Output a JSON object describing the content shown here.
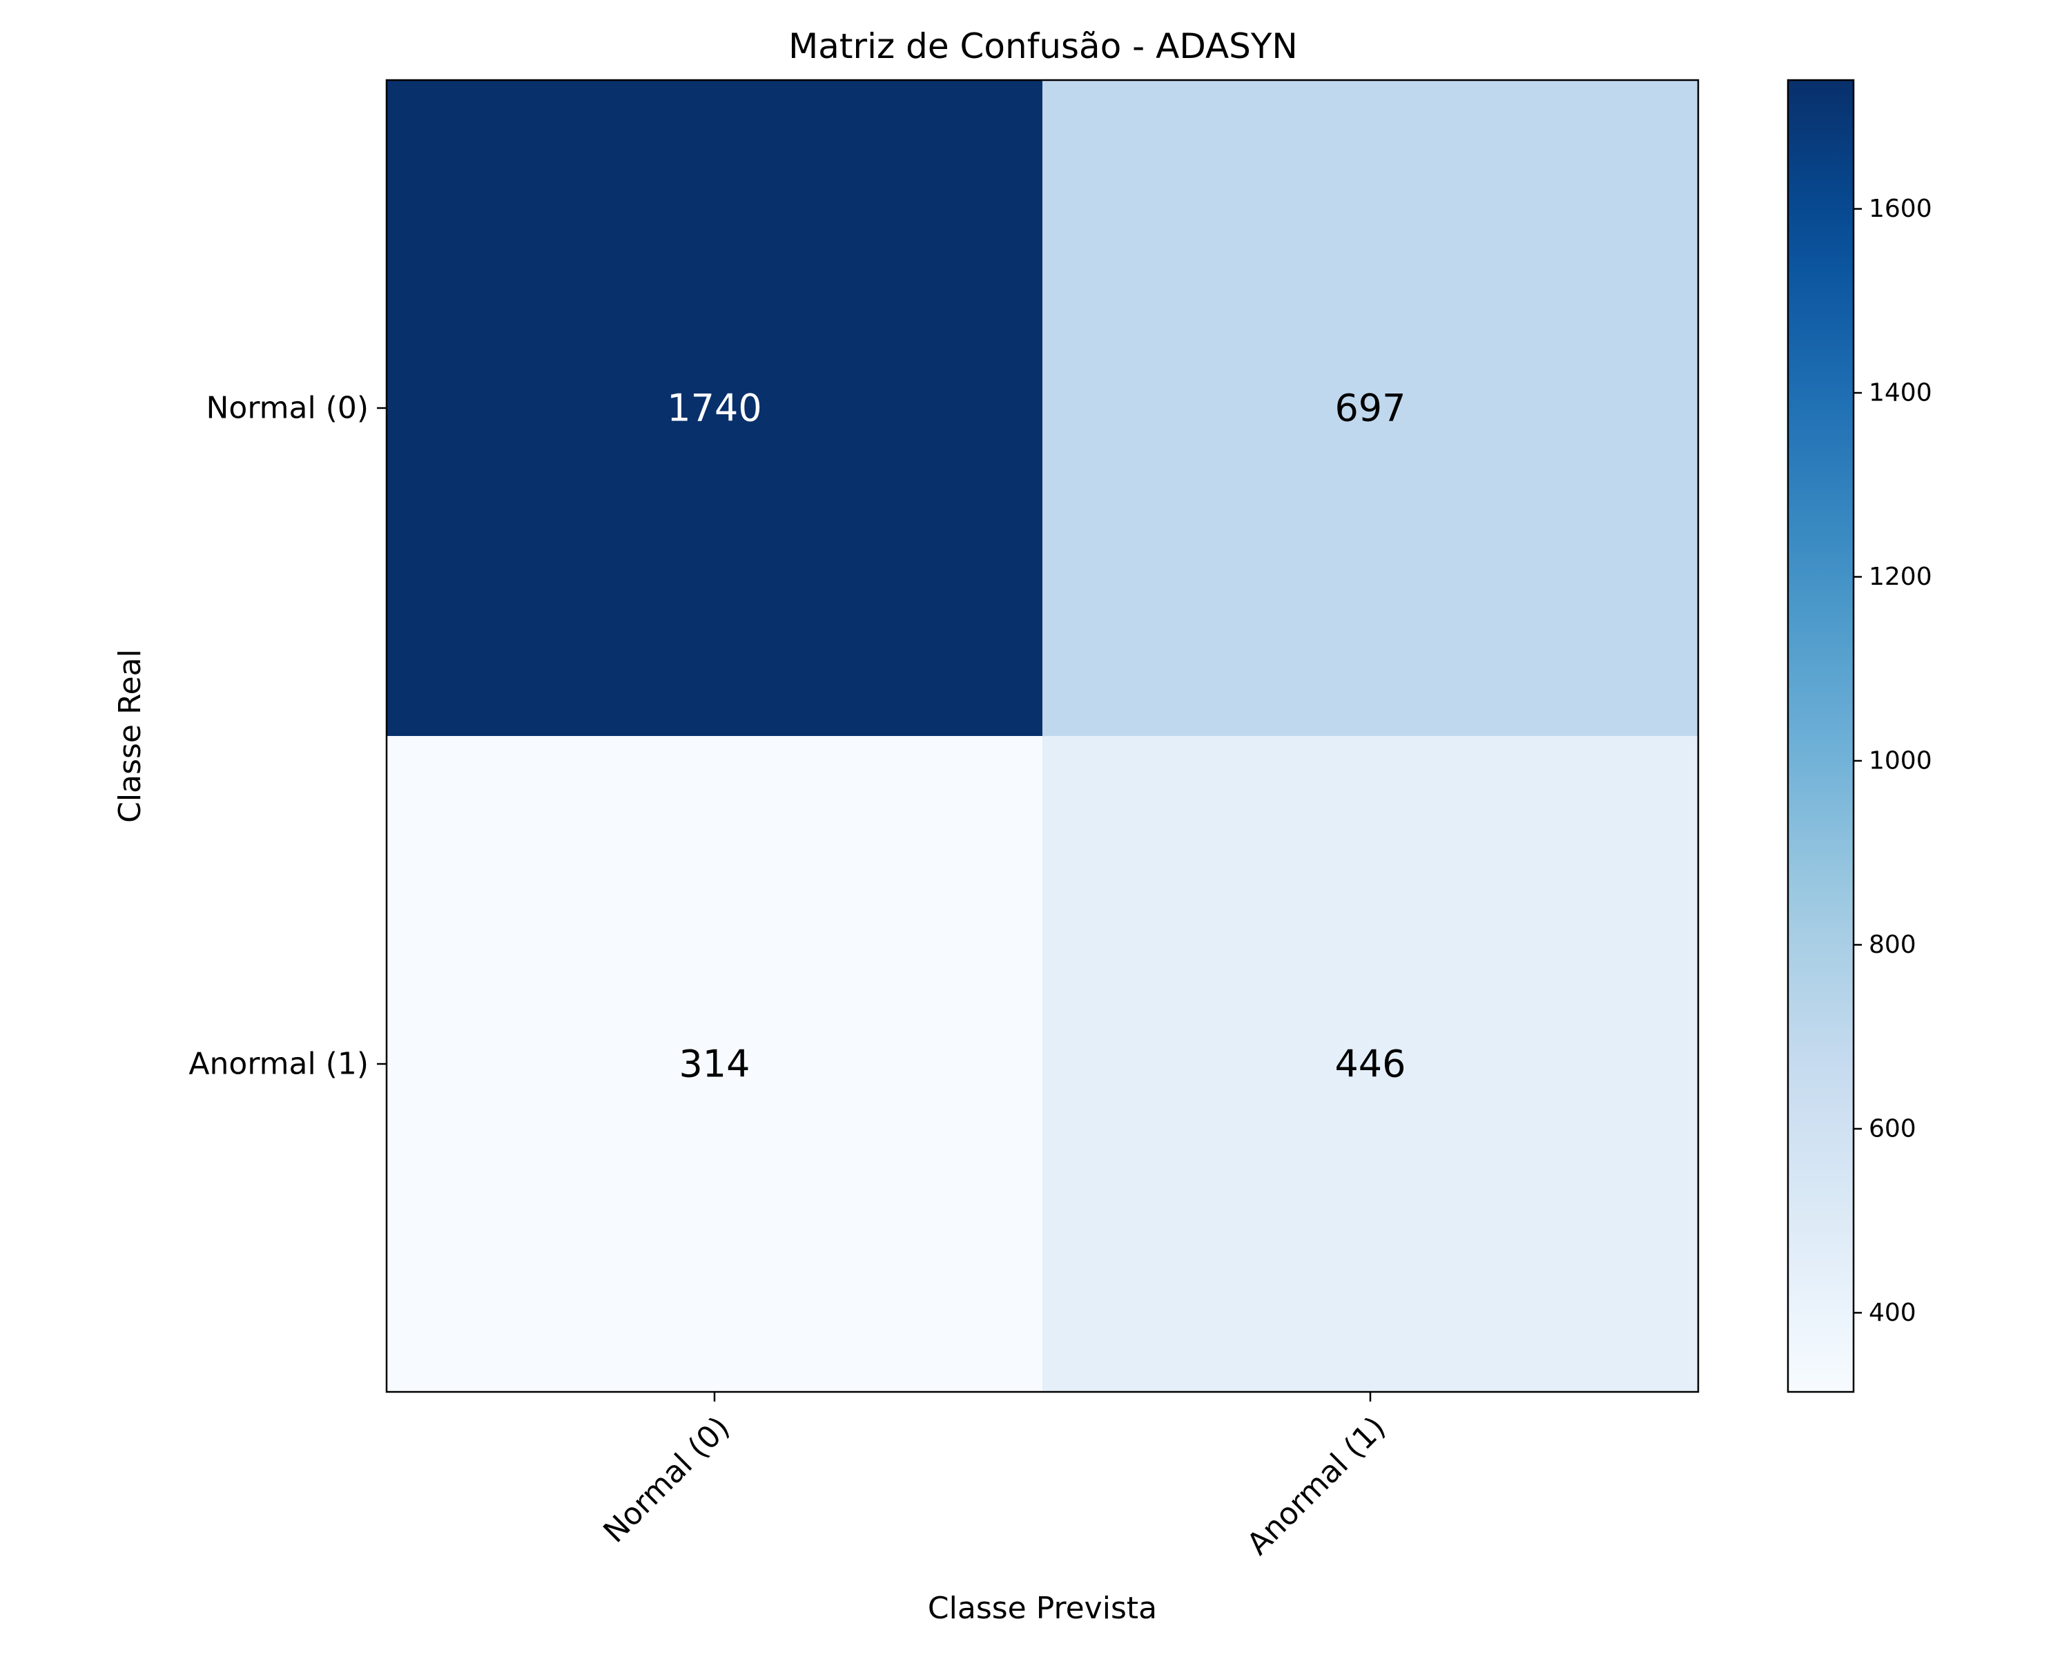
{
  "chart_data": {
    "type": "heatmap",
    "title": "Matriz de Confusão - ADASYN",
    "xlabel": "Classe Prevista",
    "ylabel": "Classe Real",
    "x_categories": [
      "Normal (0)",
      "Anormal (1)"
    ],
    "y_categories": [
      "Normal (0)",
      "Anormal (1)"
    ],
    "values": [
      [
        1740,
        697
      ],
      [
        314,
        446
      ]
    ],
    "colormap": "Blues",
    "color_range": [
      314,
      1740
    ],
    "colorbar_ticks": [
      400,
      600,
      800,
      1000,
      1200,
      1400,
      1600
    ],
    "x_tick_rotation": 45,
    "grid": false
  }
}
